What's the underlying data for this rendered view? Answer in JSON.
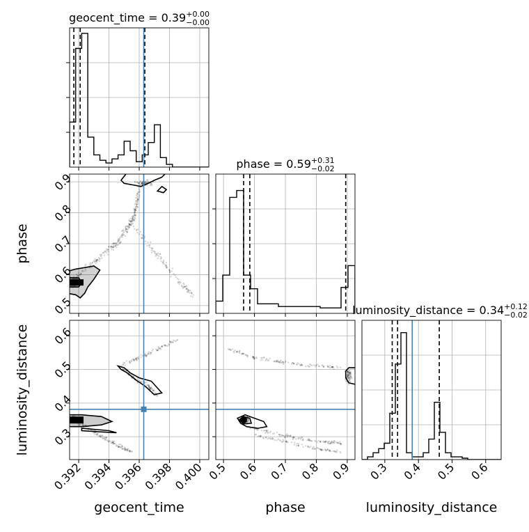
{
  "chart_data": {
    "type": "corner",
    "parameters": [
      "geocent_time",
      "phase",
      "luminosity_distance"
    ],
    "titles": [
      {
        "name": "geocent_time",
        "median": "0.39",
        "plus": "+0.00",
        "minus": "−0.00"
      },
      {
        "name": "phase",
        "median": "0.59",
        "plus": "+0.31",
        "minus": "−0.02"
      },
      {
        "name": "luminosity_distance",
        "median": "0.34",
        "plus": "+0.12",
        "minus": "−0.02"
      }
    ],
    "axis_labels": {
      "x": [
        "geocent_time",
        "phase",
        "luminosity_distance"
      ],
      "y": [
        "phase",
        "luminosity_distance"
      ]
    },
    "ranges": {
      "geocent_time": [
        0.3914,
        0.4006
      ],
      "phase": [
        0.475,
        0.925
      ],
      "luminosity_distance": [
        0.232,
        0.646
      ]
    },
    "ticks": {
      "geocent_time": [
        "0.392",
        "0.394",
        "0.396",
        "0.398",
        "0.400"
      ],
      "phase": [
        "0.5",
        "0.6",
        "0.7",
        "0.8",
        "0.9"
      ],
      "phase_y": [
        "0.5",
        "0.6",
        "0.7",
        "0.8",
        "0.9"
      ],
      "luminosity_distance": [
        "0.3",
        "0.4",
        "0.5",
        "0.6"
      ],
      "luminosity_distance_y": [
        "0.3",
        "0.4",
        "0.5",
        "0.6"
      ]
    },
    "truths": {
      "geocent_time": 0.3963,
      "phase": null,
      "luminosity_distance": 0.3815
    },
    "truth_color": "#4682b4",
    "quantiles": {
      "geocent_time": [
        0.39168,
        0.3921,
        0.39637
      ],
      "phase": [
        0.565,
        0.585,
        0.895
      ],
      "luminosity_distance": [
        0.322,
        0.338,
        0.462
      ]
    },
    "histograms": {
      "geocent_time": [
        0.33,
        0.87,
        0.98,
        0.22,
        0.09,
        0.05,
        0.03,
        0.06,
        0.09,
        0.19,
        0.12,
        0.04,
        0.09,
        0.18,
        0.31,
        0.07,
        0.02,
        0.0,
        0.0,
        0.0,
        0.0,
        0.0,
        0.0
      ],
      "phase": [
        0.09,
        0.28,
        0.85,
        0.9,
        0.28,
        0.18,
        0.07,
        0.07,
        0.07,
        0.05,
        0.05,
        0.05,
        0.05,
        0.05,
        0.05,
        0.04,
        0.04,
        0.04,
        0.19,
        0.35
      ],
      "luminosity_distance": [
        0.0,
        0.02,
        0.05,
        0.08,
        0.12,
        0.34,
        0.7,
        0.93,
        0.05,
        0.02,
        0.02,
        0.05,
        0.15,
        0.42,
        0.2,
        0.05,
        0.02,
        0.02,
        0.01,
        0.0,
        0.0,
        0.0,
        0.0,
        0.0,
        0.0
      ]
    }
  }
}
